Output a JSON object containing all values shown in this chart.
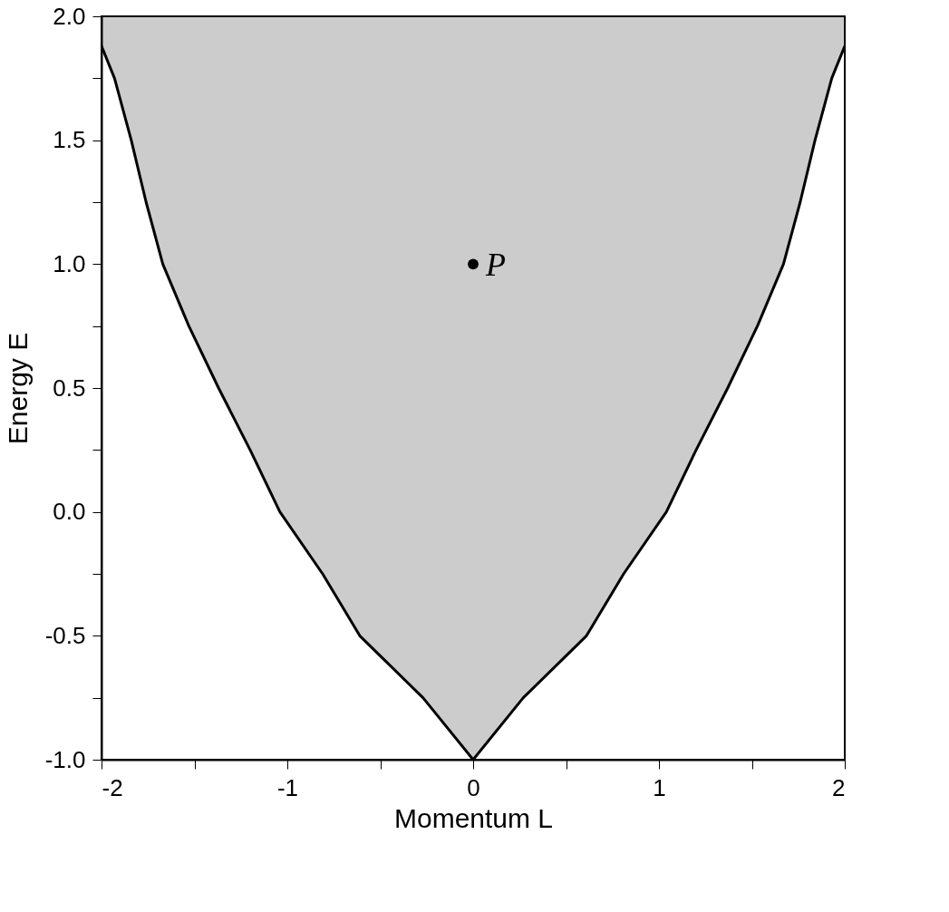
{
  "chart_data": {
    "type": "line",
    "xlabel": "Momentum L",
    "ylabel": "Energy E",
    "xlim": [
      -2,
      2
    ],
    "ylim": [
      -1,
      2
    ],
    "xticks": [
      -2,
      {
        "value": -1.5,
        "label": null
      },
      -1,
      {
        "value": -0.5,
        "label": null
      },
      0,
      {
        "value": 0.5,
        "label": null
      },
      1,
      {
        "value": 1.5,
        "label": null
      },
      2
    ],
    "yticks": [
      {
        "value": -1,
        "label": "-1.0"
      },
      {
        "value": -0.75,
        "label": null
      },
      {
        "value": -0.5,
        "label": "-0.5"
      },
      {
        "value": -0.25,
        "label": null
      },
      {
        "value": 0,
        "label": "0.0"
      },
      {
        "value": 0.25,
        "label": null
      },
      {
        "value": 0.5,
        "label": "0.5"
      },
      {
        "value": 0.75,
        "label": null
      },
      {
        "value": 1,
        "label": "1.0"
      },
      {
        "value": 1.25,
        "label": null
      },
      {
        "value": 1.5,
        "label": "1.5"
      },
      {
        "value": 1.75,
        "label": null
      },
      {
        "value": 2,
        "label": "2.0"
      }
    ],
    "grid": false,
    "marker": "none",
    "line_style": "solid",
    "series": [
      {
        "color": "#000000",
        "x": [
          -2,
          -1.93,
          -1.84,
          -1.76,
          -1.67,
          -1.53,
          -1.37,
          -1.2,
          -1.04,
          -0.81,
          -0.61,
          -0.27,
          0,
          0.27,
          0.61,
          0.81,
          1.04,
          1.2,
          1.37,
          1.53,
          1.67,
          1.76,
          1.84,
          1.93,
          2
        ],
        "values": [
          1.88,
          1.75,
          1.5,
          1.25,
          1.0,
          0.75,
          0.5,
          0.25,
          0,
          -0.25,
          -0.5,
          -0.75,
          -1,
          -0.75,
          -0.5,
          -0.25,
          0,
          0.25,
          0.5,
          0.75,
          1.0,
          1.25,
          1.5,
          1.75,
          1.88
        ],
        "lower": [
          1.88,
          1.75,
          1.5,
          1.25,
          1.0,
          0.75,
          0.5,
          0.25,
          0,
          -0.25,
          -0.5,
          -0.75,
          -1,
          -0.75,
          -0.5,
          -0.25,
          0,
          0.25,
          0.5,
          0.75,
          1.0,
          1.25,
          1.5,
          1.75,
          1.88
        ],
        "upper": [
          2,
          2,
          2,
          2,
          2,
          2,
          2,
          2,
          2,
          2,
          2,
          2,
          2,
          2,
          2,
          2,
          2,
          2,
          2,
          2,
          2,
          2,
          2,
          2,
          2
        ]
      },
      {
        "type": "scatter",
        "name": "P",
        "color": "#000000",
        "marker": "circle",
        "x": [
          0
        ],
        "values": [
          1
        ]
      }
    ]
  }
}
